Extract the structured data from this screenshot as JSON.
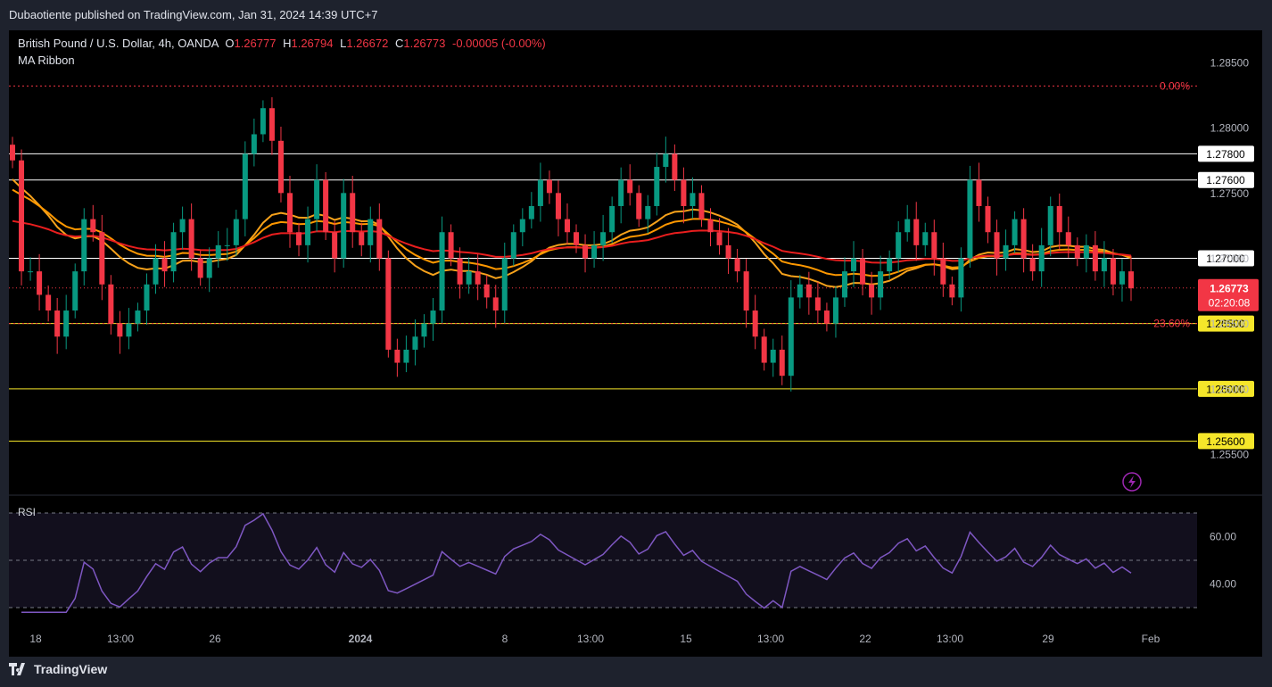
{
  "header": {
    "published": "Dubaotiente published on TradingView.com, Jan 31, 2024 14:39 UTC+7"
  },
  "legend": {
    "symbol": "British Pound / U.S. Dollar, 4h, OANDA",
    "o_label": "O",
    "o_value": "1.26777",
    "h_label": "H",
    "h_value": "1.26794",
    "l_label": "L",
    "l_value": "1.26672",
    "c_label": "C",
    "c_value": "1.26773",
    "change": "-0.00005 (-0.00%)",
    "indicator": "MA Ribbon"
  },
  "footer": {
    "brand": "TradingView"
  },
  "colors": {
    "up": "#089981",
    "down": "#f23645",
    "ma_fast": "#f7a21b",
    "ma_mid": "#ff9800",
    "ma_slow": "#e91e1e",
    "rsi": "#7e57c2",
    "fib": "#f23645"
  },
  "chart_data": {
    "type": "candlestick",
    "y_axis": {
      "min": 1.2525,
      "max": 1.2875,
      "ticks": [
        "1.28500",
        "1.28000",
        "1.27500",
        "1.27000",
        "1.26500",
        "1.26000",
        "1.25500"
      ]
    },
    "x_axis": {
      "ticks": [
        "18",
        "13:00",
        "26",
        "2024",
        "8",
        "13:00",
        "15",
        "13:00",
        "22",
        "13:00",
        "29",
        "Feb"
      ]
    },
    "horizontal_levels": [
      {
        "value": 1.278,
        "label": "1.27800",
        "color": "#ffffff"
      },
      {
        "value": 1.276,
        "label": "1.27600",
        "color": "#ffffff"
      },
      {
        "value": 1.27,
        "label": "1.27000",
        "color": "#ffffff"
      },
      {
        "value": 1.265,
        "label": "1.26500",
        "color": "#f5e62a"
      },
      {
        "value": 1.26,
        "label": "1.26000",
        "color": "#f5e62a"
      },
      {
        "value": 1.256,
        "label": "1.25600",
        "color": "#f5e62a"
      }
    ],
    "fib_levels": [
      {
        "value": 1.2832,
        "label": "0.00%"
      },
      {
        "value": 1.265,
        "label": "23.60%"
      }
    ],
    "last_price": {
      "value": 1.26773,
      "label": "1.26773",
      "countdown": "02:20:08"
    },
    "closes": [
      1.2775,
      1.269,
      1.269,
      1.2672,
      1.266,
      1.264,
      1.266,
      1.269,
      1.273,
      1.272,
      1.268,
      1.265,
      1.264,
      1.265,
      1.266,
      1.268,
      1.27,
      1.269,
      1.272,
      1.273,
      1.27,
      1.2685,
      1.27,
      1.271,
      1.271,
      1.273,
      1.278,
      1.2795,
      1.2815,
      1.279,
      1.275,
      1.272,
      1.271,
      1.273,
      1.276,
      1.272,
      1.27,
      1.275,
      1.272,
      1.271,
      1.273,
      1.27,
      1.263,
      1.262,
      1.263,
      1.264,
      1.265,
      1.266,
      1.272,
      1.27,
      1.268,
      1.269,
      1.268,
      1.267,
      1.266,
      1.27,
      1.272,
      1.273,
      1.274,
      1.276,
      1.275,
      1.273,
      1.272,
      1.271,
      1.27,
      1.271,
      1.272,
      1.274,
      1.276,
      1.275,
      1.273,
      1.274,
      1.277,
      1.278,
      1.276,
      1.274,
      1.275,
      1.273,
      1.272,
      1.271,
      1.27,
      1.269,
      1.266,
      1.264,
      1.262,
      1.263,
      1.261,
      1.267,
      1.268,
      1.267,
      1.266,
      1.265,
      1.267,
      1.269,
      1.27,
      1.268,
      1.267,
      1.269,
      1.27,
      1.272,
      1.273,
      1.271,
      1.272,
      1.27,
      1.268,
      1.267,
      1.27,
      1.276,
      1.274,
      1.272,
      1.27,
      1.271,
      1.273,
      1.27,
      1.269,
      1.271,
      1.274,
      1.272,
      1.271,
      1.27,
      1.271,
      1.269,
      1.27,
      1.268,
      1.269,
      1.2677
    ],
    "rsi": {
      "label": "RSI",
      "ticks": [
        "60.00",
        "40.00"
      ],
      "bands": [
        70,
        50,
        30
      ]
    }
  }
}
